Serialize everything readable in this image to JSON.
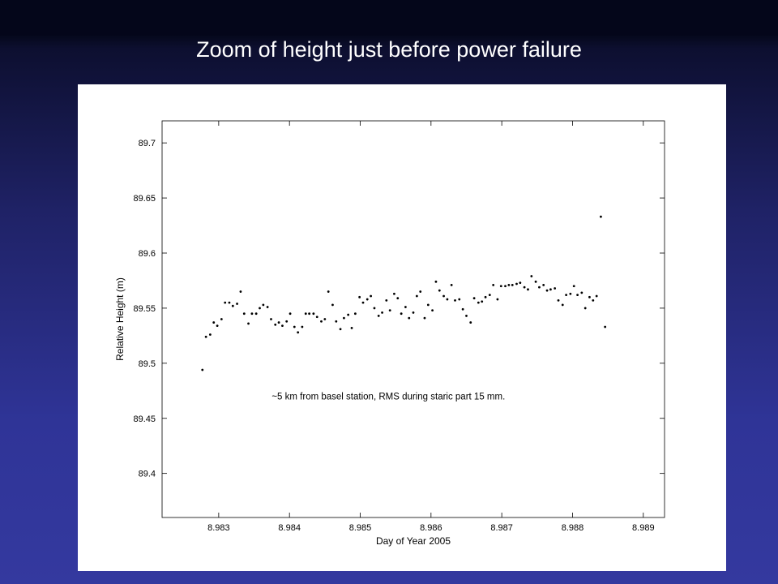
{
  "slide": {
    "title": "Zoom of height just before power failure"
  },
  "chart_data": {
    "type": "scatter",
    "title": "",
    "xlabel": "Day of Year 2005",
    "ylabel": "Relative Height (m)",
    "xlim": [
      8.9822,
      8.9893
    ],
    "ylim": [
      89.36,
      89.72
    ],
    "xticks": [
      8.983,
      8.984,
      8.985,
      8.986,
      8.987,
      8.988,
      8.989
    ],
    "xtick_labels": [
      "8.983",
      "8.984",
      "8.985",
      "8.986",
      "8.987",
      "8.988",
      "8.989"
    ],
    "yticks": [
      89.4,
      89.45,
      89.5,
      89.55,
      89.6,
      89.65,
      89.7
    ],
    "ytick_labels": [
      "89.4",
      "89.45",
      "89.5",
      "89.55",
      "89.6",
      "89.65",
      "89.7"
    ],
    "grid": false,
    "annotation": "~5 km from basel station, RMS during staric part 15 mm.",
    "marker_color": "#000000",
    "points": [
      [
        8.98277,
        89.494
      ],
      [
        8.98282,
        89.524
      ],
      [
        8.98288,
        89.526
      ],
      [
        8.98293,
        89.537
      ],
      [
        8.98298,
        89.534
      ],
      [
        8.98304,
        89.54
      ],
      [
        8.98309,
        89.555
      ],
      [
        8.98315,
        89.555
      ],
      [
        8.9832,
        89.552
      ],
      [
        8.98326,
        89.554
      ],
      [
        8.98331,
        89.565
      ],
      [
        8.98336,
        89.545
      ],
      [
        8.98342,
        89.536
      ],
      [
        8.98347,
        89.545
      ],
      [
        8.98353,
        89.545
      ],
      [
        8.98358,
        89.55
      ],
      [
        8.98363,
        89.553
      ],
      [
        8.98369,
        89.551
      ],
      [
        8.98374,
        89.54
      ],
      [
        8.9838,
        89.535
      ],
      [
        8.98385,
        89.537
      ],
      [
        8.9839,
        89.534
      ],
      [
        8.98396,
        89.538
      ],
      [
        8.98401,
        89.545
      ],
      [
        8.98407,
        89.533
      ],
      [
        8.98412,
        89.528
      ],
      [
        8.98418,
        89.533
      ],
      [
        8.98423,
        89.545
      ],
      [
        8.98428,
        89.545
      ],
      [
        8.98434,
        89.545
      ],
      [
        8.98439,
        89.542
      ],
      [
        8.98445,
        89.538
      ],
      [
        8.9845,
        89.54
      ],
      [
        8.98455,
        89.565
      ],
      [
        8.98461,
        89.553
      ],
      [
        8.98466,
        89.538
      ],
      [
        8.98472,
        89.531
      ],
      [
        8.98477,
        89.541
      ],
      [
        8.98483,
        89.544
      ],
      [
        8.98488,
        89.532
      ],
      [
        8.98493,
        89.545
      ],
      [
        8.98499,
        89.56
      ],
      [
        8.98504,
        89.555
      ],
      [
        8.9851,
        89.558
      ],
      [
        8.98515,
        89.561
      ],
      [
        8.9852,
        89.55
      ],
      [
        8.98526,
        89.543
      ],
      [
        8.98531,
        89.546
      ],
      [
        8.98537,
        89.557
      ],
      [
        8.98542,
        89.548
      ],
      [
        8.98548,
        89.563
      ],
      [
        8.98553,
        89.559
      ],
      [
        8.98558,
        89.545
      ],
      [
        8.98564,
        89.551
      ],
      [
        8.98569,
        89.541
      ],
      [
        8.98575,
        89.546
      ],
      [
        8.9858,
        89.561
      ],
      [
        8.98585,
        89.565
      ],
      [
        8.98591,
        89.541
      ],
      [
        8.98596,
        89.553
      ],
      [
        8.98602,
        89.548
      ],
      [
        8.98607,
        89.574
      ],
      [
        8.98612,
        89.566
      ],
      [
        8.98618,
        89.561
      ],
      [
        8.98623,
        89.558
      ],
      [
        8.98629,
        89.571
      ],
      [
        8.98634,
        89.557
      ],
      [
        8.9864,
        89.558
      ],
      [
        8.98645,
        89.549
      ],
      [
        8.9865,
        89.543
      ],
      [
        8.98656,
        89.537
      ],
      [
        8.98661,
        89.559
      ],
      [
        8.98667,
        89.555
      ],
      [
        8.98672,
        89.556
      ],
      [
        8.98677,
        89.56
      ],
      [
        8.98683,
        89.562
      ],
      [
        8.98688,
        89.571
      ],
      [
        8.98694,
        89.558
      ],
      [
        8.98699,
        89.57
      ],
      [
        8.98705,
        89.57
      ],
      [
        8.9871,
        89.571
      ],
      [
        8.98715,
        89.571
      ],
      [
        8.98721,
        89.572
      ],
      [
        8.98726,
        89.573
      ],
      [
        8.98732,
        89.569
      ],
      [
        8.98737,
        89.567
      ],
      [
        8.98742,
        89.579
      ],
      [
        8.98748,
        89.574
      ],
      [
        8.98753,
        89.569
      ],
      [
        8.98759,
        89.571
      ],
      [
        8.98764,
        89.566
      ],
      [
        8.98769,
        89.567
      ],
      [
        8.98775,
        89.568
      ],
      [
        8.9878,
        89.557
      ],
      [
        8.98786,
        89.553
      ],
      [
        8.98791,
        89.562
      ],
      [
        8.98797,
        89.563
      ],
      [
        8.98802,
        89.57
      ],
      [
        8.98807,
        89.562
      ],
      [
        8.98813,
        89.564
      ],
      [
        8.98818,
        89.55
      ],
      [
        8.98824,
        89.56
      ],
      [
        8.98829,
        89.557
      ],
      [
        8.98834,
        89.561
      ],
      [
        8.9884,
        89.633
      ],
      [
        8.98846,
        89.533
      ]
    ]
  }
}
